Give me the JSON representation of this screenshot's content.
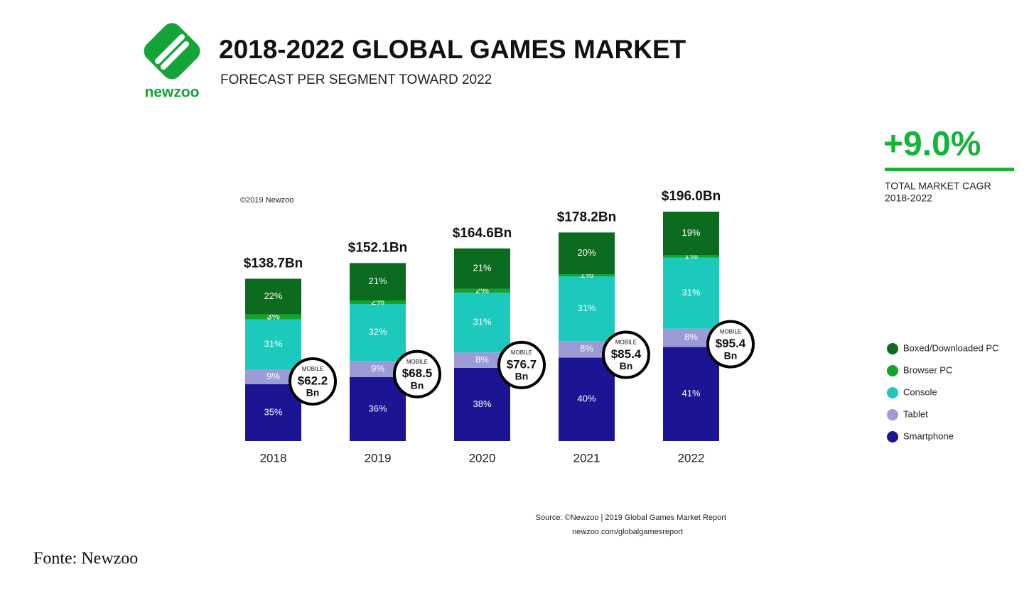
{
  "header": {
    "logo": "newzoo",
    "title": "2018-2022 GLOBAL GAMES MARKET",
    "subtitle": "FORECAST PER SEGMENT TOWARD 2022"
  },
  "chart_data": {
    "type": "bar",
    "stacked": true,
    "copyright": "©2019 Newzoo",
    "categories": [
      "2018",
      "2019",
      "2020",
      "2021",
      "2022"
    ],
    "series": [
      {
        "name": "Boxed/Downloaded PC",
        "color": "#0b6b1e",
        "values": [
          22,
          21,
          21,
          20,
          19
        ],
        "value_labels": [
          "22%",
          "21%",
          "21%",
          "20%",
          "19%"
        ]
      },
      {
        "name": "Browser PC",
        "color": "#10a52a",
        "values": [
          3,
          2,
          2,
          1,
          1
        ],
        "value_labels": [
          "3%",
          "2%",
          "2%",
          "1%",
          "1%"
        ]
      },
      {
        "name": "Console",
        "color": "#1cc9bd",
        "values": [
          31,
          32,
          31,
          31,
          31
        ],
        "value_labels": [
          "31%",
          "32%",
          "31%",
          "31%",
          "31%"
        ]
      },
      {
        "name": "Tablet",
        "color": "#9d9bd6",
        "values": [
          9,
          9,
          8,
          8,
          8
        ],
        "value_labels": [
          "9%",
          "9%",
          "8%",
          "8%",
          "8%"
        ]
      },
      {
        "name": "Smartphone",
        "color": "#1b1593",
        "values": [
          35,
          36,
          38,
          40,
          41
        ],
        "value_labels": [
          "35%",
          "36%",
          "38%",
          "40%",
          "41%"
        ]
      }
    ],
    "totals": {
      "values": [
        138.7,
        152.1,
        164.6,
        178.2,
        196.0
      ],
      "value_labels": [
        "$138.7Bn",
        "$152.1Bn",
        "$164.6Bn",
        "$178.2Bn",
        "$196.0Bn"
      ]
    },
    "mobile": {
      "label": "MOBILE",
      "unit": "Bn",
      "values": [
        62.2,
        68.5,
        76.7,
        85.4,
        95.4
      ],
      "value_labels": [
        "$62.2",
        "$68.5",
        "$76.7",
        "$85.4",
        "$95.4"
      ]
    },
    "legend": "right"
  },
  "cagr": {
    "value": "+9.0%",
    "label": "TOTAL MARKET CAGR",
    "period": "2018-2022"
  },
  "source": [
    "Source: ©Newzoo | 2019 Global Games Market Report",
    "newzoo.com/globalgamesreport"
  ],
  "caption": "Fonte: Newzoo"
}
